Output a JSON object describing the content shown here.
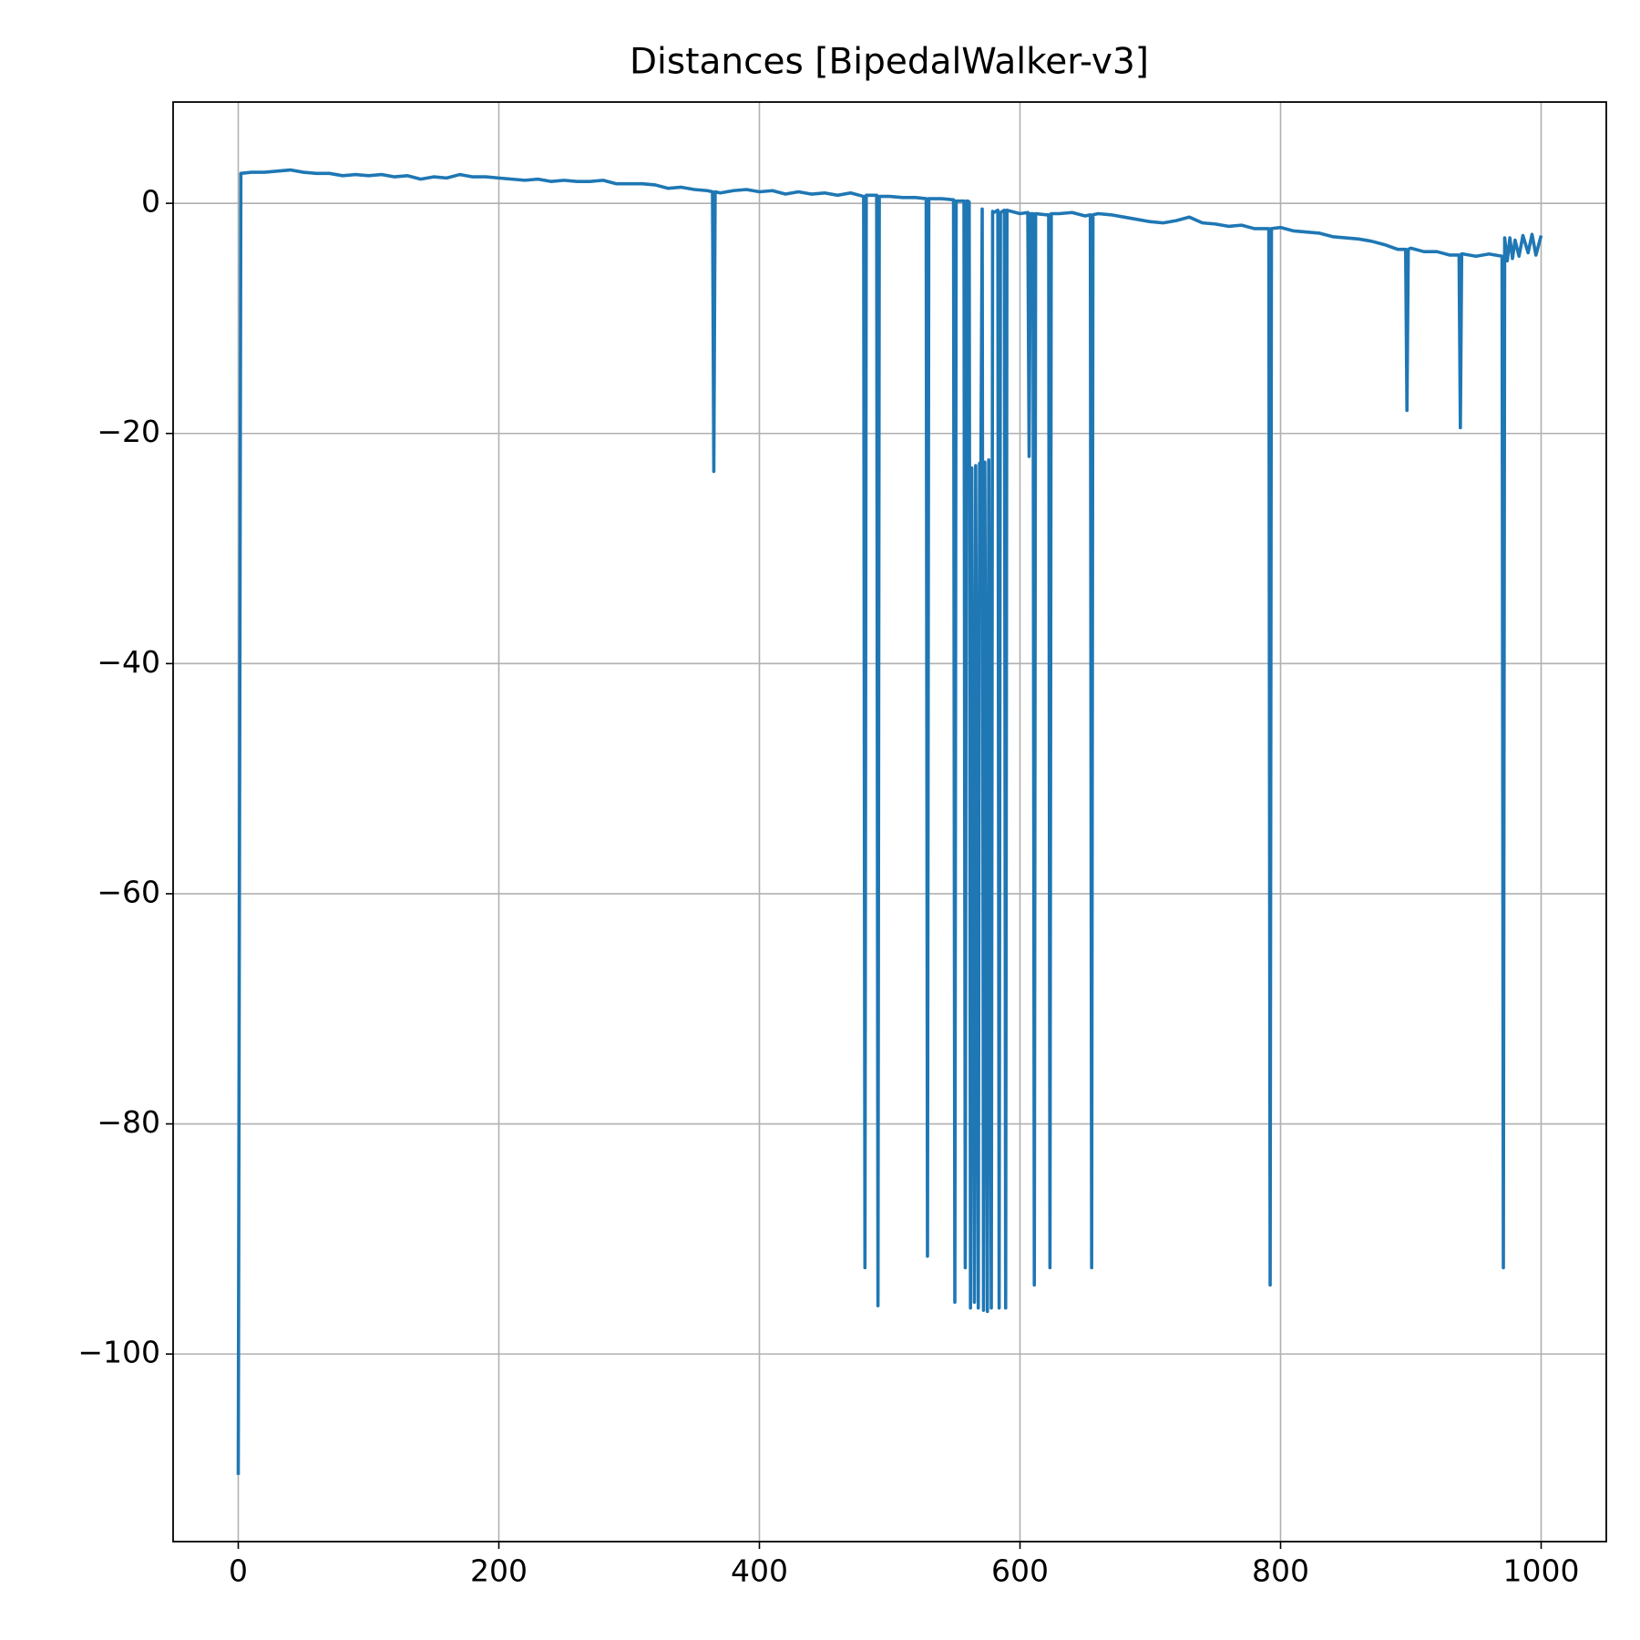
{
  "chart_data": {
    "type": "line",
    "title": "Distances [BipedalWalker-v3]",
    "color": "#1f77b4",
    "grid": true,
    "xlim": [
      -50,
      1050
    ],
    "ylim": [
      -116.3,
      8.8
    ],
    "xticks": [
      0,
      200,
      400,
      600,
      800,
      1000
    ],
    "yticks": [
      {
        "value": -100,
        "label": "−100"
      },
      {
        "value": -80,
        "label": "−80"
      },
      {
        "value": -60,
        "label": "−60"
      },
      {
        "value": -40,
        "label": "−40"
      },
      {
        "value": -20,
        "label": "−20"
      },
      0
    ],
    "x": [
      0,
      2,
      10,
      20,
      30,
      40,
      50,
      60,
      70,
      80,
      90,
      100,
      110,
      120,
      130,
      140,
      150,
      160,
      170,
      180,
      190,
      200,
      210,
      220,
      230,
      240,
      250,
      260,
      270,
      280,
      290,
      300,
      310,
      320,
      330,
      340,
      350,
      360,
      364,
      365,
      366,
      370,
      380,
      390,
      400,
      410,
      420,
      430,
      440,
      450,
      460,
      470,
      480,
      481,
      482,
      490,
      491,
      492,
      500,
      510,
      520,
      528,
      529,
      530,
      540,
      549,
      550,
      551,
      557,
      558,
      559,
      560,
      561,
      562,
      563,
      565,
      566,
      568,
      569,
      570,
      571,
      572,
      573,
      575,
      576,
      578,
      579,
      580,
      583,
      584,
      585,
      588,
      589,
      590,
      600,
      606,
      607,
      608,
      610,
      611,
      612,
      620,
      622,
      623,
      624,
      630,
      640,
      650,
      654,
      655,
      656,
      660,
      670,
      680,
      690,
      700,
      710,
      720,
      730,
      740,
      750,
      760,
      770,
      780,
      790,
      791,
      792,
      793,
      800,
      810,
      820,
      830,
      840,
      850,
      860,
      870,
      880,
      890,
      896,
      897,
      898,
      900,
      910,
      920,
      930,
      937,
      938,
      939,
      940,
      950,
      960,
      970,
      971,
      972,
      974,
      976,
      978,
      980,
      983,
      986,
      990,
      993,
      996,
      1000
    ],
    "values": [
      -110.5,
      2.6,
      2.7,
      2.7,
      2.8,
      2.9,
      2.7,
      2.6,
      2.6,
      2.4,
      2.5,
      2.4,
      2.5,
      2.3,
      2.4,
      2.1,
      2.3,
      2.2,
      2.5,
      2.3,
      2.3,
      2.2,
      2.1,
      2.0,
      2.1,
      1.9,
      2.0,
      1.9,
      1.9,
      2.0,
      1.7,
      1.7,
      1.7,
      1.6,
      1.3,
      1.4,
      1.2,
      1.1,
      1.0,
      -23.3,
      1.0,
      0.9,
      1.1,
      1.2,
      1.0,
      1.1,
      0.8,
      1.0,
      0.8,
      0.9,
      0.7,
      0.9,
      0.6,
      -92.5,
      0.7,
      0.7,
      -95.8,
      0.6,
      0.6,
      0.5,
      0.5,
      0.4,
      -91.5,
      0.4,
      0.4,
      0.3,
      -95.5,
      0.2,
      0.2,
      -92.5,
      0.2,
      0.2,
      0.1,
      -96,
      -23,
      -95.5,
      -22.8,
      -96,
      -22.6,
      -23,
      -0.5,
      -96.2,
      -22.5,
      -96.3,
      -22.3,
      -96,
      -0.7,
      -0.8,
      -0.6,
      -96,
      -0.8,
      -0.6,
      -96,
      -0.6,
      -0.9,
      -0.8,
      -22,
      -0.9,
      -0.9,
      -94,
      -0.9,
      -1.0,
      -1.0,
      -92.5,
      -0.9,
      -0.9,
      -0.8,
      -1.1,
      -1.0,
      -92.5,
      -1.0,
      -0.9,
      -1.0,
      -1.2,
      -1.4,
      -1.6,
      -1.7,
      -1.5,
      -1.2,
      -1.7,
      -1.8,
      -2.0,
      -1.9,
      -2.2,
      -2.2,
      -2.2,
      -94,
      -2.2,
      -2.1,
      -2.4,
      -2.5,
      -2.6,
      -2.9,
      -3.0,
      -3.1,
      -3.3,
      -3.6,
      -4.0,
      -4.0,
      -18,
      -4.0,
      -3.9,
      -4.2,
      -4.2,
      -4.5,
      -4.5,
      -19.5,
      -4.4,
      -4.4,
      -4.6,
      -4.4,
      -4.6,
      -92.5,
      -3.0,
      -5.0,
      -3.0,
      -4.8,
      -3.2,
      -4.6,
      -2.8,
      -4.3,
      -2.7,
      -4.5,
      -2.8
    ]
  }
}
